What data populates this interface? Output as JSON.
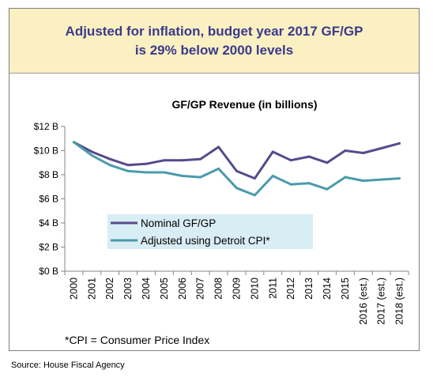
{
  "banner": {
    "line1": "Adjusted for inflation, budget year 2017 GF/GP",
    "line2": "is 29% below 2000 levels"
  },
  "chart_data": {
    "type": "line",
    "title": "GF/GP Revenue (in billions)",
    "xlabel": "",
    "ylabel": "",
    "categories": [
      "2000",
      "2001",
      "2002",
      "2003",
      "2004",
      "2005",
      "2006",
      "2007",
      "2008",
      "2009",
      "2010",
      "2011",
      "2012",
      "2013",
      "2014",
      "2015",
      "2016 (est.)",
      "2017 (est.)",
      "2018 (est.)"
    ],
    "y_ticks": [
      "$0 B",
      "$2 B",
      "$4 B",
      "$6 B",
      "$8 B",
      "$10 B",
      "$12 B"
    ],
    "ylim": [
      0,
      12
    ],
    "grid": false,
    "legend_position": "lower-left inside plot",
    "series": [
      {
        "name": "Nominal GF/GP",
        "color": "#584a8c",
        "values": [
          10.7,
          9.9,
          9.3,
          8.8,
          8.9,
          9.2,
          9.2,
          9.3,
          10.3,
          8.3,
          7.7,
          9.9,
          9.2,
          9.5,
          9.0,
          10.0,
          9.8,
          10.2,
          10.6
        ]
      },
      {
        "name": "Adjusted using Detroit CPI*",
        "color": "#4b9bab",
        "values": [
          10.7,
          9.6,
          8.8,
          8.3,
          8.2,
          8.2,
          7.9,
          7.8,
          8.5,
          6.9,
          6.3,
          7.9,
          7.2,
          7.3,
          6.8,
          7.8,
          7.5,
          7.6,
          7.7
        ]
      }
    ],
    "footnote": "*CPI = Consumer Price Index"
  },
  "source": "Source: House Fiscal Agency"
}
